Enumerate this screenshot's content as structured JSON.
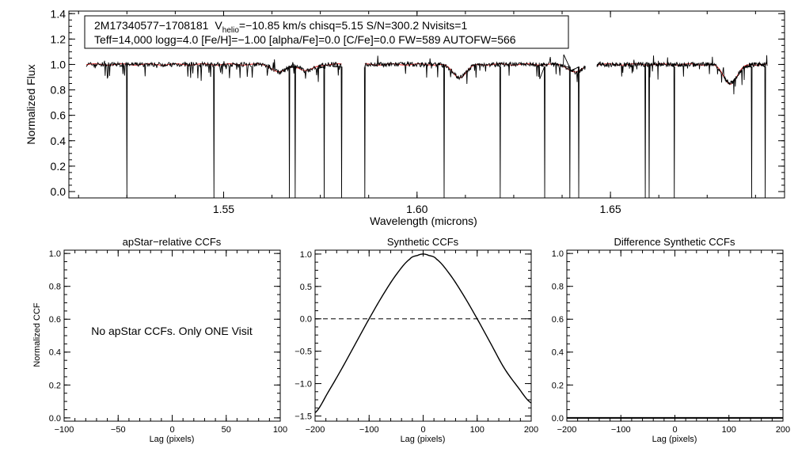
{
  "chart_data": [
    {
      "id": "spectrum",
      "type": "line",
      "xlabel": "Wavelength (microns)",
      "ylabel": "Normalized Flux",
      "xlim": [
        1.51,
        1.695
      ],
      "ylim": [
        -0.05,
        1.42
      ],
      "xticks": [
        {
          "v": 1.55,
          "label": "1.55"
        },
        {
          "v": 1.6,
          "label": "1.60"
        },
        {
          "v": 1.65,
          "label": "1.65"
        }
      ],
      "yticks": [
        {
          "v": 0.0,
          "label": "0.0"
        },
        {
          "v": 0.2,
          "label": "0.2"
        },
        {
          "v": 0.4,
          "label": "0.4"
        },
        {
          "v": 0.6,
          "label": "0.6"
        },
        {
          "v": 0.8,
          "label": "0.8"
        },
        {
          "v": 1.0,
          "label": "1.0"
        },
        {
          "v": 1.2,
          "label": "1.2"
        },
        {
          "v": 1.4,
          "label": "1.4"
        }
      ],
      "info_line1": {
        "star": "2M17340577−1708181",
        "v": "V",
        "sub": "helio",
        "rest": "=−10.85 km/s  chisq=5.15  S/N=300.2  Nvisits=1"
      },
      "info_line2": "Teff=14,000 logg=4.0 [Fe/H]=−1.00 [alpha/Fe]=0.0 [C/Fe]=0.0 FW=589 AUTOFW=566",
      "chips": [
        [
          1.5145,
          1.5805
        ],
        [
          1.5865,
          1.6435
        ],
        [
          1.6465,
          1.6905
        ]
      ],
      "absorption_lines": [
        {
          "wl": 1.5645,
          "depth": 0.06
        },
        {
          "wl": 1.5715,
          "depth": 0.05
        },
        {
          "wl": 1.611,
          "depth": 0.1
        },
        {
          "wl": 1.641,
          "depth": 0.06
        },
        {
          "wl": 1.681,
          "depth": 0.15
        }
      ],
      "spikes": [
        1.525,
        1.5475,
        1.567,
        1.5685,
        1.576,
        1.5805,
        1.5865,
        1.607,
        1.6215,
        1.633,
        1.6395,
        1.6418,
        1.659,
        1.66,
        1.6665,
        1.6865,
        1.69,
        1.692
      ],
      "series": [
        {
          "name": "observed",
          "color": "#000000"
        },
        {
          "name": "model",
          "color": "#e02020"
        }
      ]
    },
    {
      "id": "apstar_ccf",
      "type": "line",
      "title": "apStar−relative CCFs",
      "xlabel": "Lag (pixels)",
      "ylabel": "Normalized CCF",
      "xlim": [
        -100,
        100
      ],
      "ylim": [
        -0.02,
        1.02
      ],
      "xticks": [
        {
          "v": -100,
          "label": "−100"
        },
        {
          "v": -50,
          "label": "−50"
        },
        {
          "v": 0,
          "label": "0"
        },
        {
          "v": 50,
          "label": "50"
        },
        {
          "v": 100,
          "label": "100"
        }
      ],
      "yticks": [
        {
          "v": 0.0,
          "label": "0.0"
        },
        {
          "v": 0.2,
          "label": "0.2"
        },
        {
          "v": 0.4,
          "label": "0.4"
        },
        {
          "v": 0.6,
          "label": "0.6"
        },
        {
          "v": 0.8,
          "label": "0.8"
        },
        {
          "v": 1.0,
          "label": "1.0"
        }
      ],
      "message": "No apStar CCFs.  Only ONE Visit"
    },
    {
      "id": "synthetic_ccf",
      "type": "line",
      "title": "Synthetic CCFs",
      "xlabel": "Lag (pixels)",
      "xlim": [
        -200,
        200
      ],
      "ylim": [
        -1.58,
        1.06
      ],
      "xticks": [
        {
          "v": -200,
          "label": "−200"
        },
        {
          "v": -100,
          "label": "−100"
        },
        {
          "v": 0,
          "label": "0"
        },
        {
          "v": 100,
          "label": "100"
        },
        {
          "v": 200,
          "label": "200"
        }
      ],
      "yticks": [
        {
          "v": -1.5,
          "label": "−1.5"
        },
        {
          "v": -1.0,
          "label": "−1.0"
        },
        {
          "v": -0.5,
          "label": "−0.5"
        },
        {
          "v": 0.0,
          "label": "0.0"
        },
        {
          "v": 0.5,
          "label": "0.5"
        },
        {
          "v": 1.0,
          "label": "1.0"
        }
      ],
      "curve": {
        "x": [
          -200,
          -175,
          -150,
          -125,
          -100,
          -75,
          -50,
          -25,
          -10,
          0,
          10,
          25,
          50,
          75,
          100,
          125,
          150,
          175,
          200
        ],
        "y": [
          -1.45,
          -1.12,
          -0.76,
          -0.38,
          0.0,
          0.36,
          0.68,
          0.92,
          0.98,
          1.0,
          0.98,
          0.92,
          0.68,
          0.36,
          0.0,
          -0.38,
          -0.76,
          -1.05,
          -1.3
        ]
      },
      "reference_line": 0.0
    },
    {
      "id": "difference_ccf",
      "type": "line",
      "title": "Difference Synthetic CCFs",
      "xlabel": "Lag (pixels)",
      "xlim": [
        -200,
        200
      ],
      "ylim": [
        -0.02,
        1.02
      ],
      "xticks": [
        {
          "v": -200,
          "label": "−200"
        },
        {
          "v": -100,
          "label": "−100"
        },
        {
          "v": 0,
          "label": "0"
        },
        {
          "v": 100,
          "label": "100"
        },
        {
          "v": 200,
          "label": "200"
        }
      ],
      "yticks": [
        {
          "v": 0.0,
          "label": "0.0"
        },
        {
          "v": 0.2,
          "label": "0.2"
        },
        {
          "v": 0.4,
          "label": "0.4"
        },
        {
          "v": 0.6,
          "label": "0.6"
        },
        {
          "v": 0.8,
          "label": "0.8"
        },
        {
          "v": 1.0,
          "label": "1.0"
        }
      ],
      "curve": {
        "x": [
          -200,
          200
        ],
        "y": [
          0.0,
          0.0
        ]
      }
    }
  ]
}
